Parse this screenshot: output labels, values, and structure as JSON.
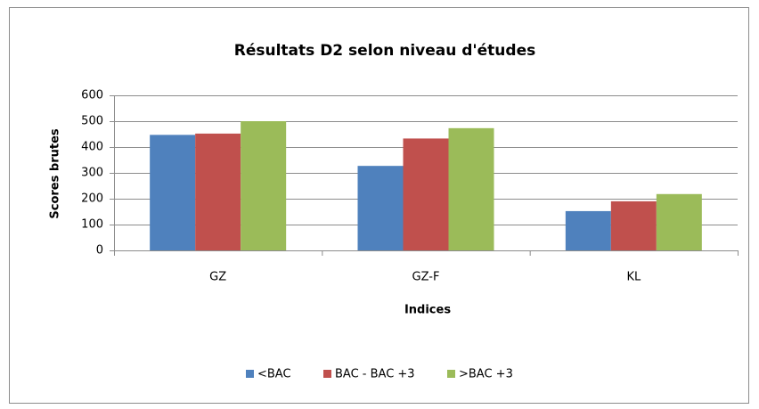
{
  "chart_data": {
    "type": "bar",
    "title": "Résultats D2 selon niveau d'études",
    "x_label": "Indices",
    "y_label": "Scores brutes",
    "categories": [
      "GZ",
      "GZ-F",
      "KL"
    ],
    "series": [
      {
        "name": "<BAC",
        "color": "#4f81bd",
        "values": [
          447,
          327,
          152
        ]
      },
      {
        "name": "BAC - BAC +3",
        "color": "#c0504d",
        "values": [
          452,
          433,
          190
        ]
      },
      {
        "name": ">BAC +3",
        "color": "#9bbb59",
        "values": [
          500,
          473,
          218
        ]
      }
    ],
    "ylim": [
      0,
      600
    ],
    "yticks": [
      0,
      100,
      200,
      300,
      400,
      500,
      600
    ],
    "grid": true,
    "legend": "bottom"
  }
}
